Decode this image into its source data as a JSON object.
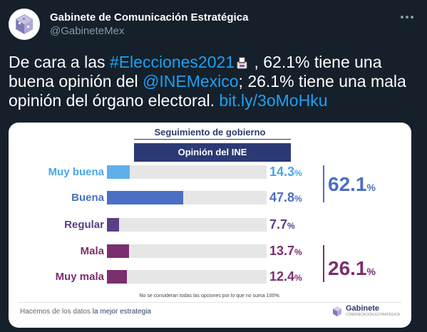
{
  "tweet": {
    "display_name": "Gabinete de Comunicación Estratégica",
    "handle": "@GabineteMex",
    "text_1": "De cara a las ",
    "hashtag": "#Elecciones2021",
    "text_2": " , 62.1% tiene una buena opinión del ",
    "mention": "@INEMexico",
    "text_3": "; 26.1% tiene una mala opinión del órgano electoral. ",
    "link": "bit.ly/3oMoHku"
  },
  "colors": {
    "background": "#15202b",
    "link": "#1da1f2",
    "positive": "#4a6fc4",
    "negative": "#7a2f6e"
  },
  "chart_data": {
    "type": "bar",
    "title": "Seguimiento de gobierno",
    "subtitle": "Opinión del INE",
    "categories": [
      "Muy buena",
      "Buena",
      "Regular",
      "Mala",
      "Muy mala"
    ],
    "values": [
      14.3,
      47.8,
      7.7,
      13.7,
      12.4
    ],
    "value_labels": [
      "14.3",
      "47.8",
      "7.7",
      "13.7",
      "12.4"
    ],
    "unit": "%",
    "bar_colors": [
      "#5fb0ea",
      "#4a6fc4",
      "#5a3f86",
      "#7a2f6e",
      "#7a2f6e"
    ],
    "label_colors": [
      "#4aa6e6",
      "#4a6fc4",
      "#5a3f86",
      "#7a2f6e",
      "#7a2f6e"
    ],
    "value_colors": [
      "#4aa6e6",
      "#4a6fc4",
      "#5a3f86",
      "#7a2f6e",
      "#7a2f6e"
    ],
    "xlim": [
      0,
      100
    ],
    "grid": false,
    "groups": [
      {
        "total": "62.1",
        "unit": "%",
        "color": "#4a6fc4"
      },
      {
        "total": "26.1",
        "unit": "%",
        "color": "#7a2f6e"
      }
    ],
    "footnote": "No se consideran todas las opciones por lo que no suma 100%.",
    "footer_prefix": "Hacemos de los datos ",
    "footer_emphasis": "la mejor estrategia",
    "brand": "Gabinete",
    "brand_sub": "COMUNICACIÓN ESTRATÉGICA"
  }
}
